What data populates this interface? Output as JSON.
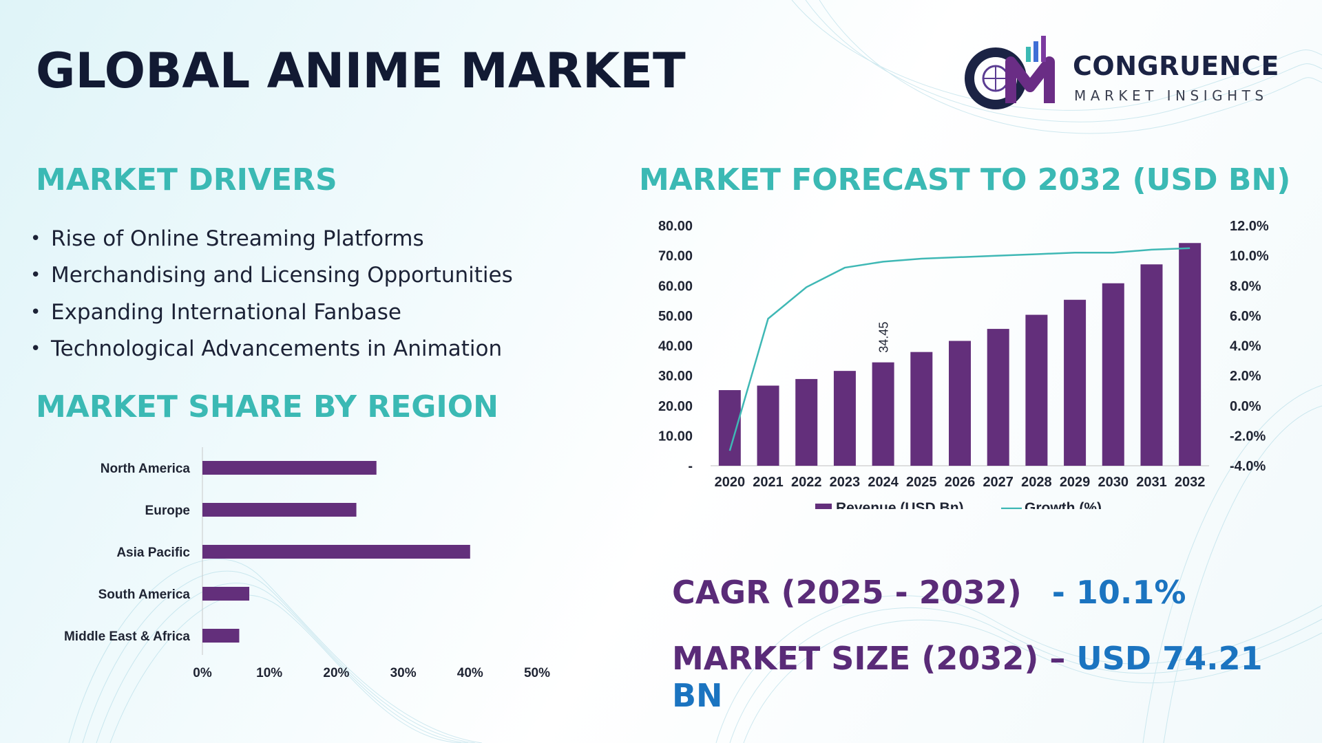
{
  "page": {
    "title": "GLOBAL ANIME MARKET"
  },
  "logo": {
    "monogram": "CM",
    "name": "CONGRUENCE",
    "tagline": "MARKET INSIGHTS"
  },
  "drivers": {
    "heading": "MARKET DRIVERS",
    "bullet": "•",
    "items": [
      "Rise of Online Streaming Platforms",
      "Merchandising and Licensing Opportunities",
      "Expanding International Fanbase",
      "Technological Advancements in Animation"
    ]
  },
  "region": {
    "heading": "MARKET SHARE BY REGION"
  },
  "forecast": {
    "heading": "MARKET FORECAST TO 2032 (USD BN)"
  },
  "stats": {
    "cagr_label": "CAGR (2025 - 2032)",
    "cagr_value": "- 10.1%",
    "size_label": "MARKET SIZE (2032) –",
    "size_value": "USD 74.21 BN"
  },
  "colors": {
    "title": "#121a33",
    "section_heading": "#3bb9b4",
    "bar": "#632f7b",
    "growth_line": "#3fb8b5",
    "stat_label": "#5a2b78",
    "stat_value": "#1b74c0"
  },
  "chart_data": [
    {
      "type": "bar",
      "orientation": "horizontal",
      "categories": [
        "North America",
        "Europe",
        "Asia Pacific",
        "South America",
        "Middle East & Africa"
      ],
      "values": [
        26,
        23,
        40,
        7,
        5.5
      ],
      "xlim": [
        0,
        50
      ],
      "xticks": [
        "0%",
        "10%",
        "20%",
        "30%",
        "40%",
        "50%"
      ],
      "grid": false,
      "legend": "none"
    },
    {
      "type": "bar",
      "categories": [
        "2020",
        "2021",
        "2022",
        "2023",
        "2024",
        "2025",
        "2026",
        "2027",
        "2028",
        "2029",
        "2030",
        "2031",
        "2032"
      ],
      "series": [
        {
          "name": "Revenue (USD Bn)",
          "type": "bar",
          "axis": "left",
          "values": [
            25.2,
            26.7,
            28.9,
            31.6,
            34.45,
            37.9,
            41.6,
            45.6,
            50.3,
            55.3,
            60.8,
            67.1,
            74.21
          ]
        },
        {
          "name": "Growth (%)",
          "type": "line",
          "axis": "right",
          "values": [
            -3.0,
            5.8,
            7.9,
            9.2,
            9.6,
            9.8,
            9.9,
            10.0,
            10.1,
            10.2,
            10.2,
            10.4,
            10.5
          ]
        }
      ],
      "data_labels": [
        {
          "category": "2024",
          "text": "34.45"
        }
      ],
      "ylim_left": [
        0,
        80
      ],
      "yticks_left": [
        "-",
        "10.00",
        "20.00",
        "30.00",
        "40.00",
        "50.00",
        "60.00",
        "70.00",
        "80.00"
      ],
      "ylim_right": [
        -4,
        12
      ],
      "yticks_right": [
        "-4.0%",
        "-2.0%",
        "0.0%",
        "2.0%",
        "4.0%",
        "6.0%",
        "8.0%",
        "10.0%",
        "12.0%"
      ],
      "legend": "bottom",
      "grid": false
    }
  ]
}
